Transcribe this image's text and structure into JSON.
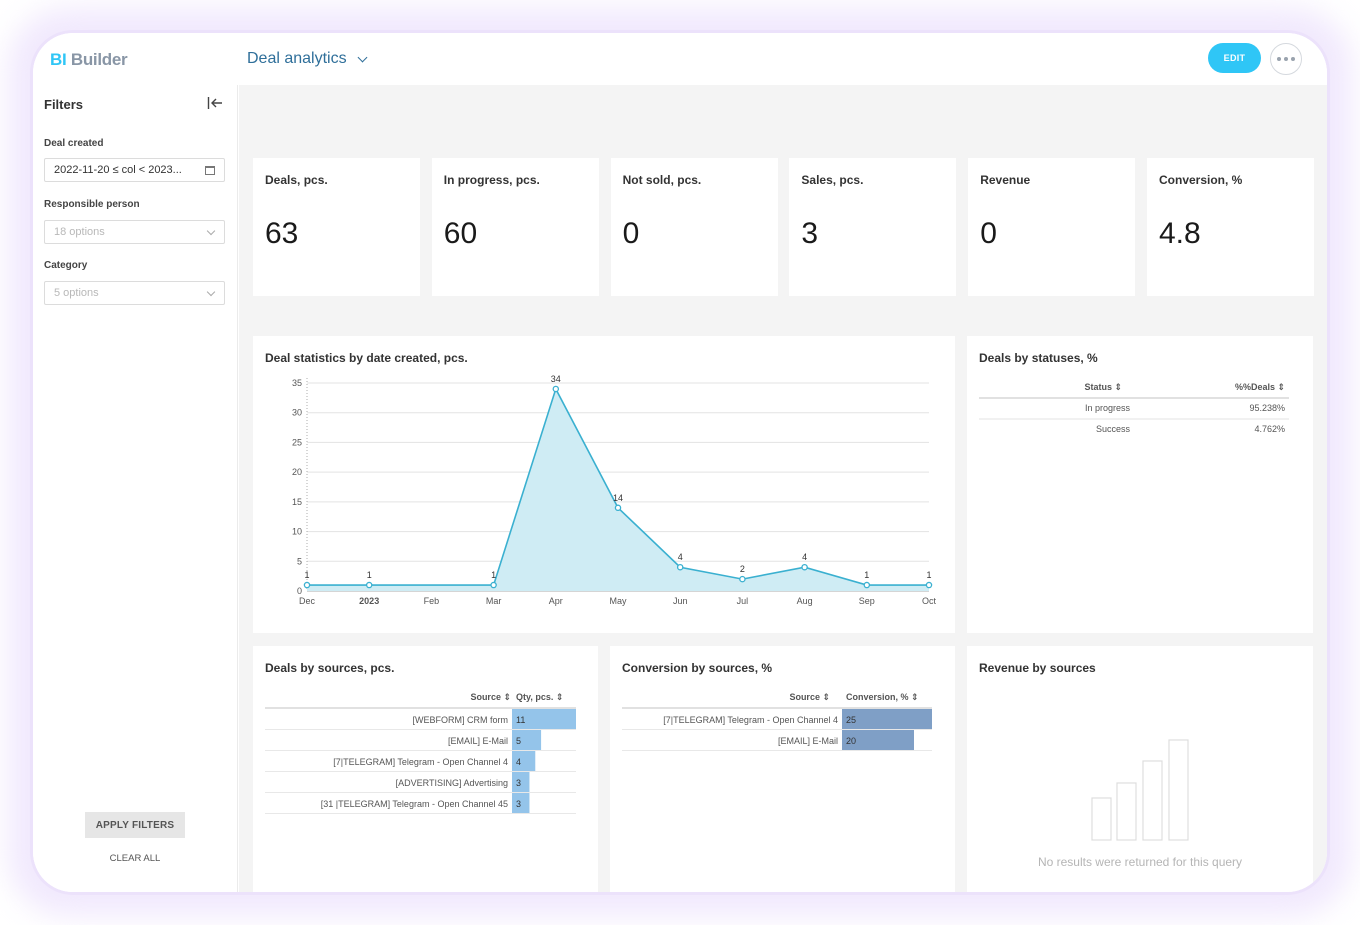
{
  "app": {
    "logo_bi": "BI",
    "logo_builder": "Builder"
  },
  "header": {
    "title": "Deal analytics",
    "edit_label": "EDIT"
  },
  "sidebar": {
    "title": "Filters",
    "filters": [
      {
        "label": "Deal created",
        "value": "2022-11-20 ≤ col < 2023...",
        "kind": "date"
      },
      {
        "label": "Responsible person",
        "placeholder": "18 options",
        "kind": "select"
      },
      {
        "label": "Category",
        "placeholder": "5 options",
        "kind": "select"
      }
    ],
    "apply_label": "APPLY FILTERS",
    "clear_label": "CLEAR ALL"
  },
  "kpis": [
    {
      "title": "Deals, pcs.",
      "value": "63"
    },
    {
      "title": "In progress, pcs.",
      "value": "60"
    },
    {
      "title": "Not sold, pcs.",
      "value": "0"
    },
    {
      "title": "Sales, pcs.",
      "value": "3"
    },
    {
      "title": "Revenue",
      "value": "0"
    },
    {
      "title": "Conversion, %",
      "value": "4.8"
    }
  ],
  "chart_data": [
    {
      "type": "area",
      "title": "Deal statistics by date created, pcs.",
      "x": [
        "Dec",
        "2023",
        "Feb",
        "Mar",
        "Apr",
        "May",
        "Jun",
        "Jul",
        "Aug",
        "Sep",
        "Oct"
      ],
      "points": [
        {
          "x": "2022-12-01",
          "y": 1
        },
        {
          "x": "2023-01-01",
          "y": 1
        },
        {
          "x": "2023-03-01",
          "y": 1
        },
        {
          "x": "2023-04-01",
          "y": 34
        },
        {
          "x": "2023-05-01",
          "y": 14
        },
        {
          "x": "2023-06-01",
          "y": 4
        },
        {
          "x": "2023-07-01",
          "y": 2
        },
        {
          "x": "2023-08-01",
          "y": 4
        },
        {
          "x": "2023-09-01",
          "y": 1
        },
        {
          "x": "2023-10-01",
          "y": 1
        }
      ],
      "yticks": [
        0,
        5,
        10,
        15,
        20,
        25,
        30,
        35
      ],
      "ylim": [
        0,
        35
      ],
      "grid": true,
      "color": "#3ab0d0",
      "fill": "#cfecf4"
    },
    {
      "type": "table",
      "title": "Deals by sources, pcs.",
      "columns": [
        "Source",
        "Qty, pcs."
      ],
      "categories": [
        "[WEBFORM] CRM form",
        "[EMAIL] E-Mail",
        "[7|TELEGRAM] Telegram - Open Channel 4",
        "[ADVERTISING] Advertising",
        "[31 |TELEGRAM] Telegram - Open Channel 45"
      ],
      "values": [
        11,
        5,
        4,
        3,
        3
      ],
      "bar_color": "#94c4ea"
    },
    {
      "type": "table",
      "title": "Conversion by sources, %",
      "columns": [
        "Source",
        "Conversion, %"
      ],
      "categories": [
        "[7|TELEGRAM] Telegram - Open Channel 4",
        "[EMAIL] E-Mail"
      ],
      "values": [
        25,
        20
      ],
      "bar_color": "#7f9fc6"
    }
  ],
  "status_table": {
    "title": "Deals by statuses, %",
    "columns": [
      "Status",
      "%%Deals"
    ],
    "rows": [
      {
        "status": "In progress",
        "pct": "95.238%"
      },
      {
        "status": "Success",
        "pct": "4.762%"
      }
    ]
  },
  "revenue": {
    "title": "Revenue by sources",
    "empty_text": "No results were returned for this query"
  }
}
